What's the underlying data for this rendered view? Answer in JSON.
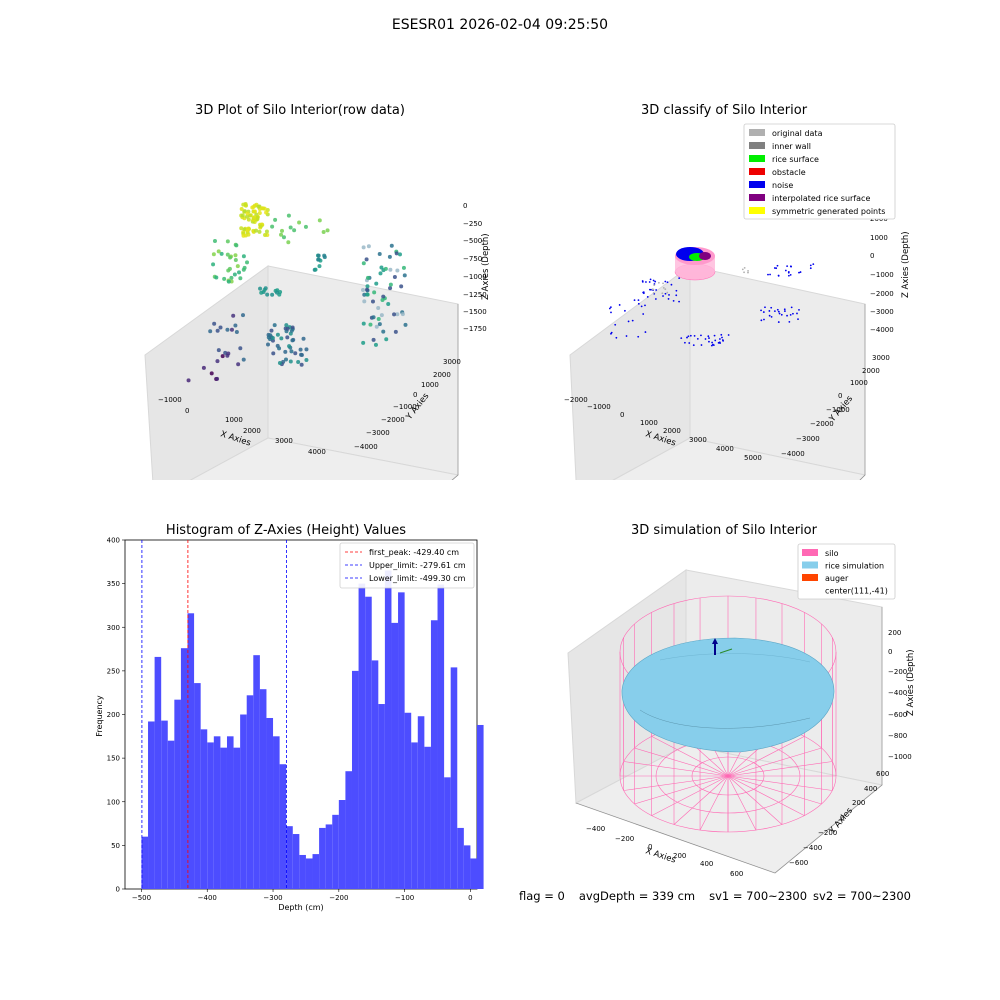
{
  "figure": {
    "suptitle": "ESESR01 2026-02-04 09:25:50",
    "footer": {
      "flag": "flag = 0",
      "avg_depth": "avgDepth = 339 cm",
      "sv1": "sv1 = 700~2300",
      "sv2": "sv2 = 700~2300"
    }
  },
  "panels": {
    "raw": {
      "title": "3D Plot of Silo Interior(row data)",
      "xlabel": "X Axies",
      "ylabel": "Y Axies",
      "zlabel": "Z Axies (Depth)",
      "xticks": [
        "−1000",
        "0",
        "1000",
        "2000",
        "3000",
        "4000"
      ],
      "yticks": [
        "3000",
        "2000",
        "1000",
        "0",
        "−1000",
        "−2000",
        "−3000",
        "−4000"
      ],
      "zticks": [
        "0",
        "−250",
        "−500",
        "−750",
        "−1000",
        "−1250",
        "−1500",
        "−1750"
      ]
    },
    "classify": {
      "title": "3D classify of Silo Interior",
      "xlabel": "X Axies",
      "ylabel": "Y Axies",
      "zlabel": "Z Axies (Depth)",
      "xticks": [
        "−2000",
        "−1000",
        "0",
        "1000",
        "2000",
        "3000",
        "4000",
        "5000"
      ],
      "yticks": [
        "3000",
        "2000",
        "1000",
        "0",
        "−1000",
        "−2000",
        "−3000",
        "−4000"
      ],
      "zticks": [
        "2000",
        "1000",
        "0",
        "−1000",
        "−2000",
        "−3000",
        "−4000"
      ],
      "legend": [
        {
          "label": "original data",
          "color": "#b0b0b0"
        },
        {
          "label": "inner wall",
          "color": "#808080"
        },
        {
          "label": "rice surface",
          "color": "#00ee00"
        },
        {
          "label": "obstacle",
          "color": "#ee0000"
        },
        {
          "label": "noise",
          "color": "#0000ee"
        },
        {
          "label": "interpolated rice surface",
          "color": "#800080"
        },
        {
          "label": "symmetric generated points",
          "color": "#ffff00"
        }
      ]
    },
    "simulation": {
      "title": "3D simulation of Silo Interior",
      "xlabel": "X Axies",
      "ylabel": "Y Axies",
      "zlabel": "Z Axies (Depth)",
      "xticks": [
        "−400",
        "−200",
        "0",
        "200",
        "400",
        "600"
      ],
      "yticks": [
        "600",
        "400",
        "200",
        "0",
        "−200",
        "−400",
        "−600"
      ],
      "zticks": [
        "200",
        "0",
        "−200",
        "−400",
        "−600",
        "−800",
        "−1000"
      ],
      "legend": [
        {
          "label": "silo",
          "color": "#ff69b4"
        },
        {
          "label": "rice simulation",
          "color": "#87ceeb"
        },
        {
          "label": "auger",
          "color": "#ff4500"
        },
        {
          "label": "center(111,-41)",
          "color": ""
        }
      ]
    }
  },
  "chart_data": {
    "type": "bar",
    "title": "Histogram of Z-Axies (Height) Values",
    "xlabel": "Depth (cm)",
    "ylabel": "Frequency",
    "bar_color": "#4d4dff",
    "xlim": [
      -525,
      10
    ],
    "ylim": [
      0,
      400
    ],
    "xticks": [
      -500,
      -400,
      -300,
      -200,
      -100,
      0
    ],
    "yticks": [
      0,
      50,
      100,
      150,
      200,
      250,
      300,
      350,
      400
    ],
    "bin_start": -500,
    "bin_width": 10,
    "values": [
      60,
      192,
      266,
      193,
      170,
      217,
      276,
      316,
      236,
      183,
      168,
      175,
      162,
      175,
      162,
      200,
      222,
      268,
      229,
      196,
      175,
      143,
      72,
      63,
      39,
      35,
      40,
      70,
      74,
      85,
      102,
      135,
      250,
      350,
      335,
      262,
      212,
      365,
      305,
      340,
      202,
      168,
      198,
      163,
      308,
      349,
      128,
      254,
      70,
      50,
      35,
      188
    ],
    "vlines": [
      {
        "label": "first_peak: -429.40 cm",
        "x": -429.4,
        "color": "#ff0000"
      },
      {
        "label": "Upper_limit: -279.61 cm",
        "x": -279.61,
        "color": "#0000ff"
      },
      {
        "label": "Lower_limit: -499.30 cm",
        "x": -499.3,
        "color": "#0000ff"
      }
    ]
  }
}
